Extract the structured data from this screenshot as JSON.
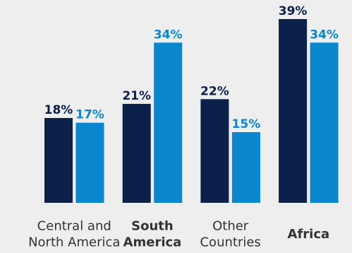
{
  "chart_data": {
    "type": "bar",
    "categories": [
      [
        "Central and",
        "North America"
      ],
      [
        "South",
        "America"
      ],
      [
        "Other",
        "Countries"
      ],
      [
        "Africa"
      ]
    ],
    "bold": [
      false,
      true,
      false,
      true
    ],
    "series": [
      {
        "color": "#0b2149",
        "values": [
          18,
          21,
          22,
          39
        ],
        "value_labels": [
          "18%",
          "21%",
          "22%",
          "39%"
        ]
      },
      {
        "color": "#0a86cf",
        "values": [
          17,
          34,
          15,
          34
        ],
        "value_labels": [
          "17%",
          "34%",
          "15%",
          "34%"
        ]
      }
    ],
    "ylim": [
      0,
      40
    ]
  }
}
